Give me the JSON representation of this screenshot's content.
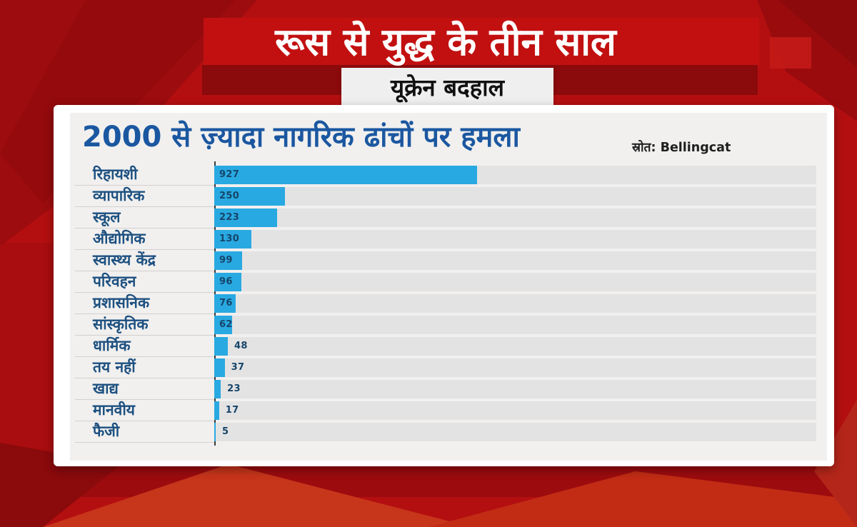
{
  "header": {
    "headline": "रूस से युद्ध के तीन साल",
    "subtitle": "यूक्रेन बदहाल"
  },
  "card": {
    "title": "2000 से ज़्यादा नागरिक ढांचों पर हमला",
    "source_label": "स्रोत: Bellingcat"
  },
  "colors": {
    "bar": "#29a9e1",
    "title_blue": "#1b57a0",
    "label_blue": "#1d5080",
    "value_navy": "#15456a",
    "bg_red": "#b40f10",
    "dark_red": "#8b0a0c",
    "bright_red": "#c21011",
    "track_gray": "#e4e3e3",
    "panel_gray": "#f1f0ef"
  },
  "chart_data": {
    "type": "bar",
    "orientation": "horizontal",
    "title": "2000 से ज़्यादा नागरिक ढांचों पर हमला",
    "source": "स्रोत: Bellingcat",
    "categories": [
      "रिहायशी",
      "व्यापारिक",
      "स्कूल",
      "औद्योगिक",
      "स्वास्थ्य केंद्र",
      "परिवहन",
      "प्रशासनिक",
      "सांस्कृतिक",
      "धार्मिक",
      "तय नहीं",
      "खाद्य",
      "मानवीय",
      "फैजी"
    ],
    "values": [
      927,
      250,
      223,
      130,
      99,
      96,
      76,
      62,
      48,
      37,
      23,
      17,
      5
    ],
    "xlim": [
      0,
      2120
    ],
    "xmax": 2120,
    "grid": false,
    "value_labels": true,
    "legend": "none"
  }
}
